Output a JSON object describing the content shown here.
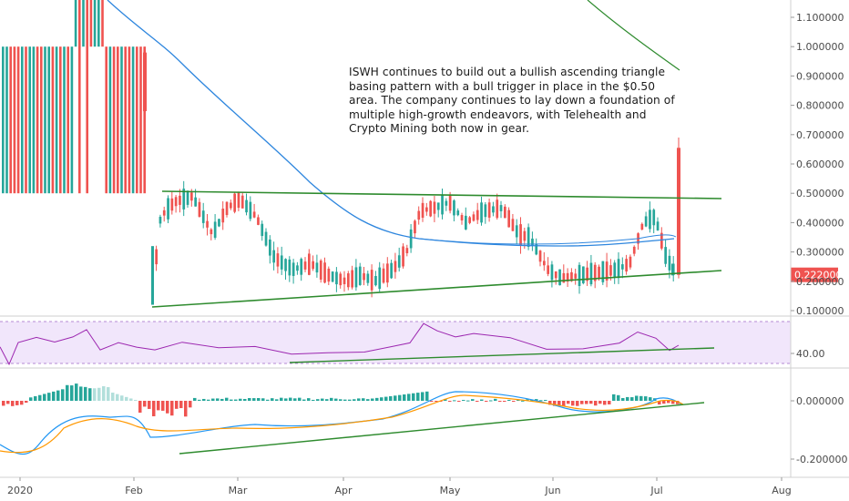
{
  "annotation": "ISWH continues to build out a bullish ascending triangle basing pattern with a bull trigger in place in the $0.50 area. The company continues to lay down a foundation of multiple high-growth endeavors, with Telehealth and Crypto Mining both now in gear.",
  "colors": {
    "up": "#26a69a",
    "down": "#ef5350",
    "ma_blue": "#2e86de",
    "ma_green": "#2e8b2e",
    "trend": "#2e8b2e",
    "rsi_line": "#9c27b0",
    "rsi_band": "#f1e6fb",
    "macd": "#2196f3",
    "signal": "#ff9800",
    "hist_up": "#26a69a",
    "hist_up_light": "#b2dfdb",
    "hist_down": "#ef5350",
    "hist_down_light": "#ffcdd2",
    "price_tag": "#ef5350",
    "axis": "#4a4a4a"
  },
  "chart_data": [
    {
      "type": "candlestick",
      "title": "",
      "ylim": [
        0.05,
        1.18
      ],
      "y_ticks": [
        "1.100000",
        "1.000000",
        "0.900000",
        "0.800000",
        "0.700000",
        "0.600000",
        "0.500000",
        "0.400000",
        "0.300000",
        "0.200000",
        "0.100000"
      ],
      "last_price": "0.222000",
      "series": [
        {
          "name": "",
          "description": "daily OHLC"
        }
      ]
    },
    {
      "type": "line",
      "title": "",
      "ylim": [
        0,
        100
      ],
      "y_ticks": [
        "40.00"
      ],
      "band": [
        30,
        70
      ]
    },
    {
      "type": "bar",
      "title": "",
      "ylim": [
        -0.26,
        0.09
      ],
      "y_ticks": [
        "0.000000",
        "-0.200000"
      ]
    }
  ],
  "x_ticks": [
    "2020",
    "Feb",
    "Mar",
    "Apr",
    "May",
    "Jun",
    "Jul",
    "Aug"
  ]
}
